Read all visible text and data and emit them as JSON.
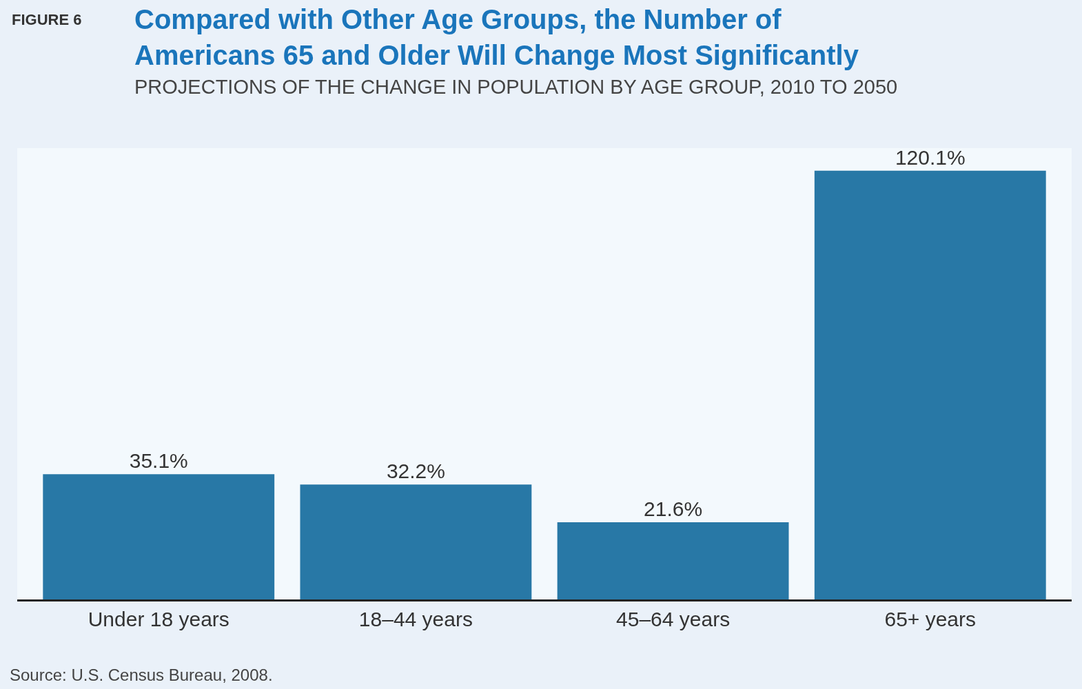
{
  "chart_data": {
    "type": "bar",
    "title": "Compared with Other Age Groups, the Number of Americans 65 and Older Will Change Most Significantly",
    "subtitle": "PROJECTIONS OF THE CHANGE IN POPULATION BY AGE GROUP, 2010 TO 2050",
    "annotations": [
      "FIGURE 6",
      "Source: U.S. Census Bureau, 2008."
    ],
    "categories": [
      "Under 18 years",
      "18–44 years",
      "45–64 years",
      "65+ years"
    ],
    "values": [
      35.1,
      32.2,
      21.6,
      120.1
    ],
    "value_labels": [
      "35.1%",
      "32.2%",
      "21.6%",
      "120.1%"
    ],
    "color": "#2878a6",
    "grid": false,
    "legend": false
  }
}
